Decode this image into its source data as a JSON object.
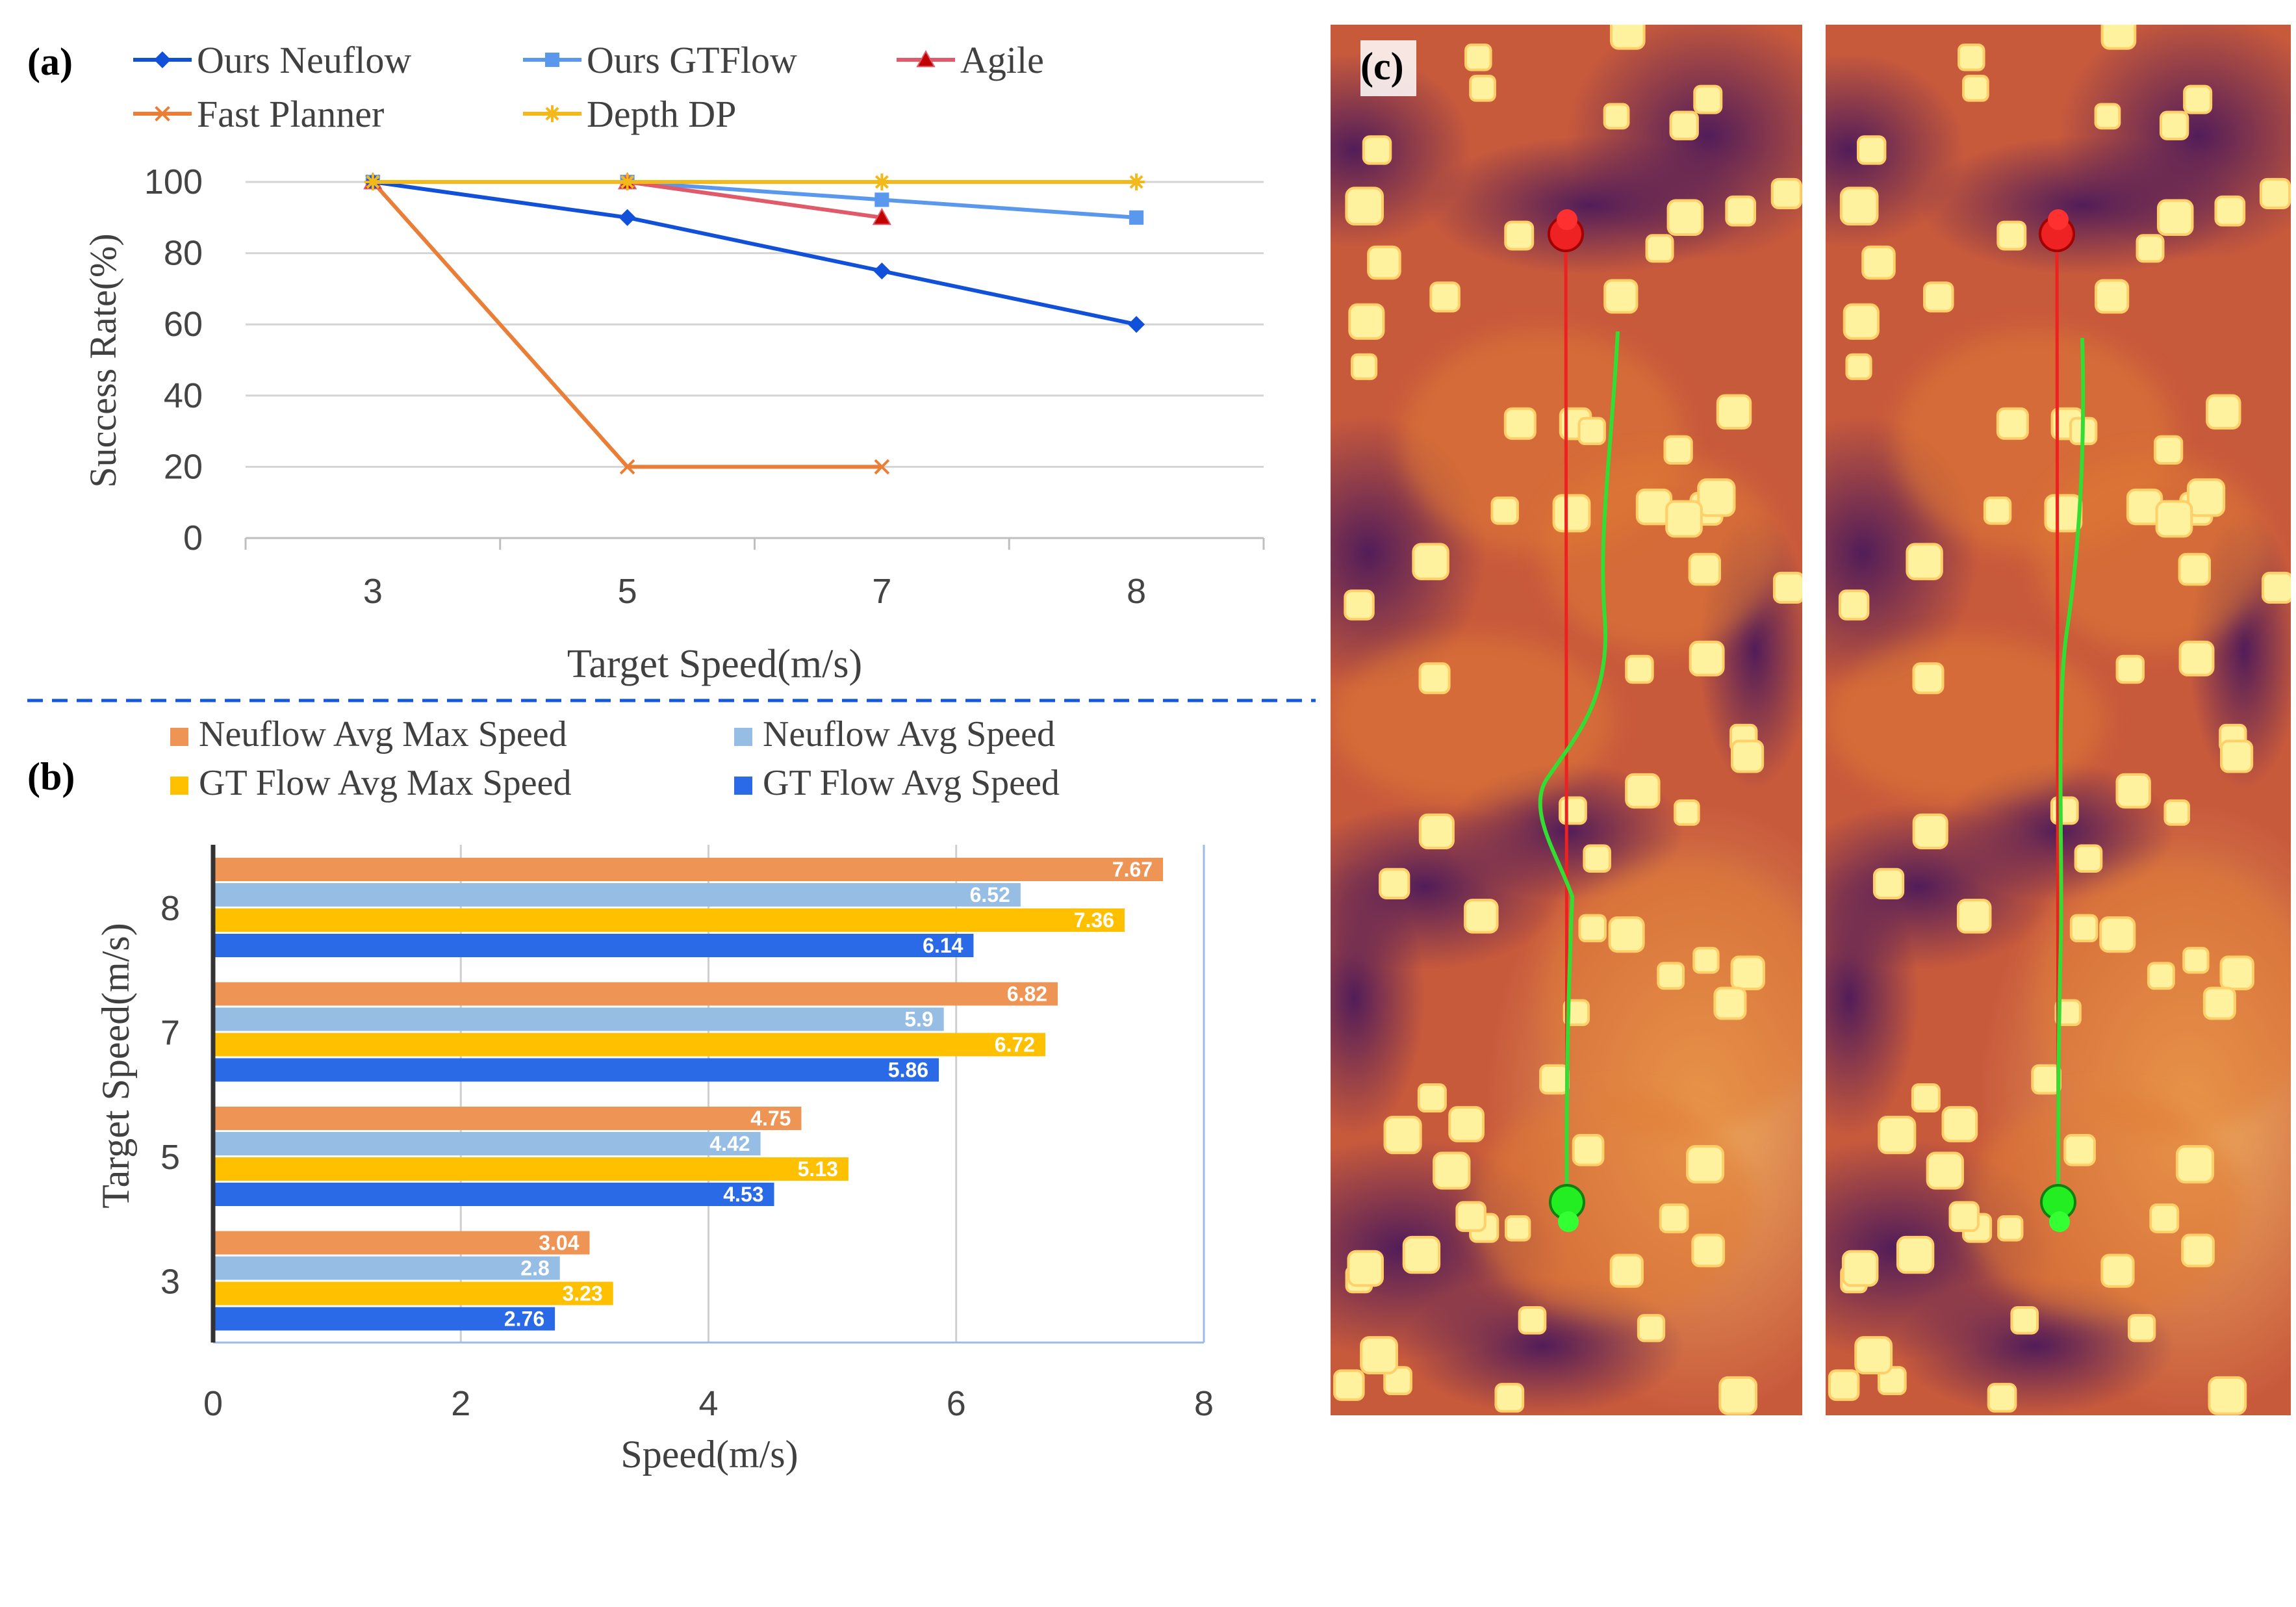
{
  "panel_labels": {
    "a": "(a)",
    "b": "(b)",
    "c": "(c)"
  },
  "colors": {
    "neuflow": "#1150d8",
    "gtflow": "#5a98ee",
    "agile": "#e05a6a",
    "fast_planner": "#ea7e37",
    "depth_dp": "#f3b91b",
    "bar_neuflow_max": "#ee9455",
    "bar_neuflow_avg": "#96bde4",
    "bar_gt_max": "#ffc000",
    "bar_gt_avg": "#2a6ae6",
    "divider": "#1558d8",
    "grid": "#d4d4d4",
    "axis_text": "#444444"
  },
  "chart_data": [
    {
      "type": "line",
      "title": "",
      "xlabel": "Target Speed(m/s)",
      "ylabel": "Success Rate(%)",
      "categories": [
        "3",
        "5",
        "7",
        "8"
      ],
      "yticks": [
        "0",
        "20",
        "40",
        "60",
        "80",
        "100"
      ],
      "ylim": [
        0,
        100
      ],
      "legend_position": "top",
      "series": [
        {
          "name": "Ours Neuflow",
          "color": "#1150d8",
          "marker": "diamond",
          "values": [
            100,
            90,
            75,
            60
          ]
        },
        {
          "name": "Ours GTFlow",
          "color": "#5a98ee",
          "marker": "square",
          "values": [
            100,
            100,
            95,
            90
          ]
        },
        {
          "name": "Agile",
          "color": "#e05a6a",
          "marker": "triangle",
          "values": [
            100,
            100,
            90,
            null
          ]
        },
        {
          "name": "Fast Planner",
          "color": "#ea7e37",
          "marker": "x",
          "values": [
            100,
            20,
            20,
            null
          ]
        },
        {
          "name": "Depth DP",
          "color": "#f3b91b",
          "marker": "star",
          "values": [
            100,
            100,
            100,
            100
          ]
        }
      ]
    },
    {
      "type": "bar",
      "orientation": "horizontal",
      "title": "",
      "xlabel": "Speed(m/s)",
      "ylabel": "Target Speed(m/s)",
      "categories": [
        "8",
        "7",
        "5",
        "3"
      ],
      "xticks": [
        "0",
        "2",
        "4",
        "6",
        "8"
      ],
      "xlim": [
        0,
        8
      ],
      "legend_position": "top",
      "series": [
        {
          "name": "Neuflow Avg Max Speed",
          "color": "#ee9455",
          "values": [
            7.67,
            6.82,
            4.75,
            3.04
          ],
          "labels": [
            "7.67",
            "6.82",
            "4.75",
            "3.04"
          ]
        },
        {
          "name": "Neuflow Avg Speed",
          "color": "#96bde4",
          "values": [
            6.52,
            5.9,
            4.42,
            2.8
          ],
          "labels": [
            "6.52",
            "5.9",
            "4.42",
            "2.8"
          ]
        },
        {
          "name": "GT Flow Avg Max Speed",
          "color": "#ffc000",
          "values": [
            7.36,
            6.72,
            5.13,
            3.23
          ],
          "labels": [
            "7.36",
            "6.72",
            "5.13",
            "3.23"
          ]
        },
        {
          "name": "GT Flow Avg Speed",
          "color": "#2a6ae6",
          "values": [
            6.14,
            5.86,
            4.53,
            2.76
          ],
          "labels": [
            "6.14",
            "5.86",
            "4.53",
            "2.76"
          ]
        }
      ]
    }
  ],
  "heatmap": {
    "description_colors": {
      "low": "#4a1a6e",
      "mid": "#a03a6a",
      "high": "#ef8a2a",
      "obstacle": "#ffef9a"
    },
    "start_color": "#22ee22",
    "goal_color": "#ee2222",
    "path_red": "#ee2020",
    "path_green": "#33dd33"
  }
}
